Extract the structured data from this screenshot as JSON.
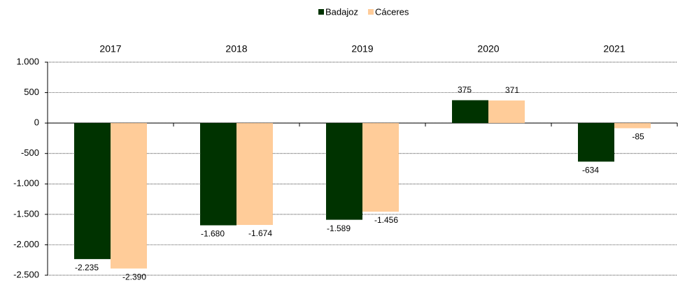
{
  "chart_data": {
    "type": "bar",
    "categories": [
      "2017",
      "2018",
      "2019",
      "2020",
      "2021"
    ],
    "series": [
      {
        "name": "Badajoz",
        "color": "#003300",
        "values": [
          -2235,
          -1680,
          -1589,
          375,
          -634
        ],
        "value_labels": [
          "-2.235",
          "-1.680",
          "-1.589",
          "375",
          "-634"
        ]
      },
      {
        "name": "Cáceres",
        "color": "#ffcc99",
        "values": [
          -2390,
          -1674,
          -1456,
          371,
          -85
        ],
        "value_labels": [
          "-2.390",
          "-1.674",
          "-1.456",
          "371",
          "-85"
        ]
      }
    ],
    "ylim": [
      -2500,
      1000
    ],
    "yticks": [
      {
        "value": -2500,
        "label": "-2.500"
      },
      {
        "value": -2000,
        "label": "-2.000"
      },
      {
        "value": -1500,
        "label": "-1.500"
      },
      {
        "value": -1000,
        "label": "-1.000"
      },
      -500,
      0,
      500,
      {
        "value": 1000,
        "label": "1.000"
      }
    ],
    "grid": true,
    "legend": "top"
  }
}
